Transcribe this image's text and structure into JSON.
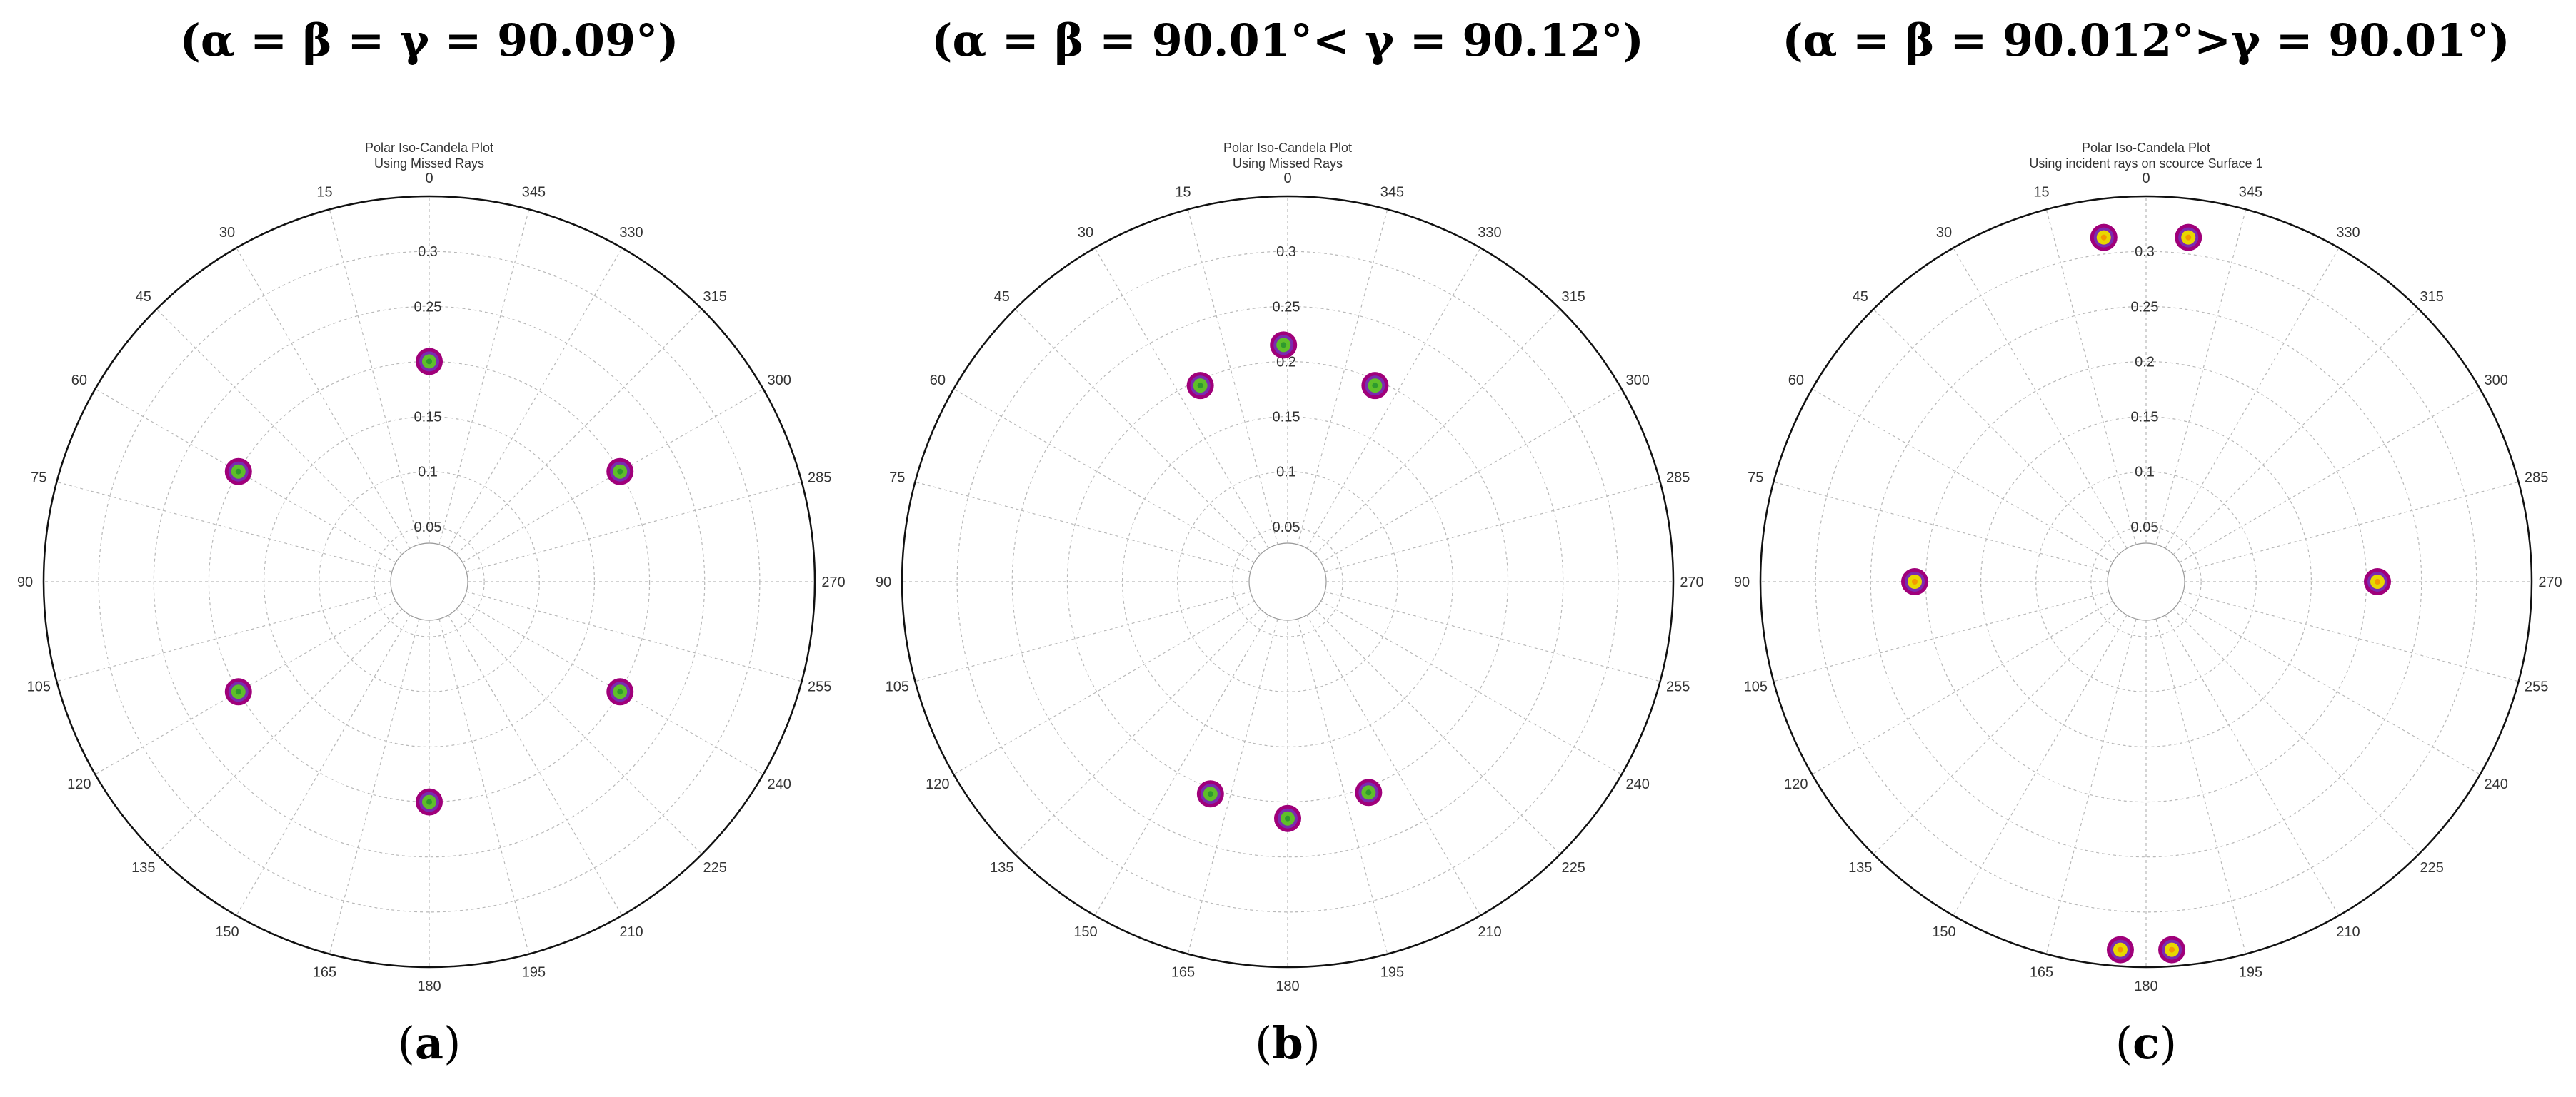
{
  "figure": {
    "panels": [
      {
        "heading": "(α = β = γ = 90.09°)",
        "letter": "a"
      },
      {
        "heading": "(α = β = 90.01°< γ = 90.12°)",
        "letter": "b"
      },
      {
        "heading": "(α = β = 90.012°>γ = 90.01°)",
        "letter": "c"
      }
    ]
  },
  "chart_data": [
    {
      "type": "scatter",
      "projection": "polar",
      "title": "Polar Iso-Candela Plot",
      "subtitle": "Using Missed Rays",
      "angle_labels": [
        "0",
        "15",
        "30",
        "45",
        "60",
        "75",
        "90",
        "105",
        "120",
        "135",
        "150",
        "165",
        "180",
        "195",
        "210",
        "225",
        "240",
        "255",
        "270",
        "285",
        "300",
        "315",
        "330",
        "345"
      ],
      "radial_ticks": [
        0.05,
        0.1,
        0.15,
        0.2,
        0.25,
        0.3
      ],
      "rlim": [
        0,
        0.35
      ],
      "grid": true,
      "points": [
        {
          "theta": 0,
          "r": 0.2
        },
        {
          "theta": 60,
          "r": 0.2
        },
        {
          "theta": 120,
          "r": 0.2
        },
        {
          "theta": 180,
          "r": 0.2
        },
        {
          "theta": 240,
          "r": 0.2
        },
        {
          "theta": 300,
          "r": 0.2
        }
      ],
      "marker_colors": [
        "#a0007a",
        "#5fbf2a"
      ]
    },
    {
      "type": "scatter",
      "projection": "polar",
      "title": "Polar Iso-Candela Plot",
      "subtitle": "Using Missed Rays",
      "angle_labels": [
        "0",
        "15",
        "30",
        "45",
        "60",
        "75",
        "90",
        "105",
        "120",
        "135",
        "150",
        "165",
        "180",
        "195",
        "210",
        "225",
        "240",
        "255",
        "270",
        "285",
        "300",
        "315",
        "330",
        "345"
      ],
      "radial_ticks": [
        0.05,
        0.1,
        0.15,
        0.2,
        0.25,
        0.3
      ],
      "rlim": [
        0,
        0.35
      ],
      "grid": true,
      "points": [
        {
          "theta": 1,
          "r": 0.215
        },
        {
          "theta": 24,
          "r": 0.195
        },
        {
          "theta": 336,
          "r": 0.195
        },
        {
          "theta": 180,
          "r": 0.215
        },
        {
          "theta": 160,
          "r": 0.205
        },
        {
          "theta": 201,
          "r": 0.205
        }
      ],
      "marker_colors": [
        "#a0007a",
        "#5fbf2a"
      ]
    },
    {
      "type": "scatter",
      "projection": "polar",
      "title": "Polar Iso-Candela Plot",
      "subtitle": "Using incident rays on scource Surface 1",
      "angle_labels": [
        "0",
        "15",
        "30",
        "45",
        "60",
        "75",
        "90",
        "105",
        "120",
        "135",
        "150",
        "165",
        "180",
        "195",
        "210",
        "225",
        "240",
        "255",
        "270",
        "285",
        "300",
        "315",
        "330",
        "345"
      ],
      "radial_ticks": [
        0.05,
        0.1,
        0.15,
        0.2,
        0.25,
        0.3
      ],
      "rlim": [
        0,
        0.35
      ],
      "grid": true,
      "points": [
        {
          "theta": 7,
          "r": 0.315
        },
        {
          "theta": 353,
          "r": 0.315
        },
        {
          "theta": 90,
          "r": 0.21
        },
        {
          "theta": 270,
          "r": 0.21
        },
        {
          "theta": 176,
          "r": 0.335
        },
        {
          "theta": 184,
          "r": 0.335
        }
      ],
      "marker_colors": [
        "#a0007a",
        "#e8d800"
      ]
    }
  ]
}
